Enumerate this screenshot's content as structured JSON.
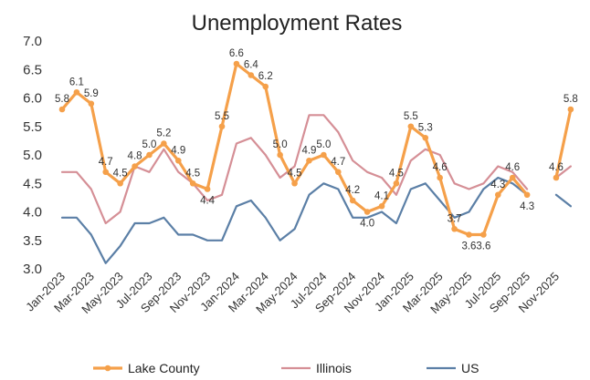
{
  "chart_data": {
    "type": "line",
    "title": "Unemployment Rates",
    "xlabel": "",
    "ylabel": "",
    "ylim": [
      3.0,
      7.0
    ],
    "y_ticks": [
      "3.0",
      "3.5",
      "4.0",
      "4.5",
      "5.0",
      "5.5",
      "6.0",
      "6.5",
      "7.0"
    ],
    "grid": false,
    "legend_position": "bottom",
    "x": [
      "Jan-2023",
      "Feb-2023",
      "Mar-2023",
      "Apr-2023",
      "May-2023",
      "Jun-2023",
      "Jul-2023",
      "Aug-2023",
      "Sep-2023",
      "Oct-2023",
      "Nov-2023",
      "Dec-2023",
      "Jan-2024",
      "Feb-2024",
      "Mar-2024",
      "Apr-2024",
      "May-2024",
      "Jun-2024",
      "Jul-2024",
      "Aug-2024",
      "Sep-2024",
      "Oct-2024",
      "Nov-2024",
      "Dec-2024",
      "Jan-2025",
      "Feb-2025",
      "Mar-2025",
      "Apr-2025",
      "May-2025",
      "Jun-2025",
      "Jul-2025",
      "Aug-2025",
      "Sep-2025",
      "Oct-2025",
      "Nov-2025",
      "Dec-2025"
    ],
    "x_tick_labels": [
      "Jan-2023",
      "Mar-2023",
      "May-2023",
      "Jul-2023",
      "Sep-2023",
      "Nov-2023",
      "Jan-2024",
      "Mar-2024",
      "May-2024",
      "Jul-2024",
      "Sep-2024",
      "Nov-2024",
      "Jan-2025",
      "Mar-2025",
      "May-2025",
      "Jul-2025",
      "Sep-2025",
      "Nov-2025"
    ],
    "series": [
      {
        "name": "Lake County",
        "color": "#F5A04A",
        "values": [
          5.8,
          6.1,
          5.9,
          4.7,
          4.5,
          4.8,
          5.0,
          5.2,
          4.9,
          4.5,
          4.4,
          5.5,
          6.6,
          6.4,
          6.2,
          5.0,
          4.5,
          4.9,
          5.0,
          4.7,
          4.2,
          4.0,
          4.1,
          4.5,
          5.5,
          5.3,
          4.6,
          3.7,
          3.6,
          3.6,
          4.3,
          4.6,
          4.3,
          null,
          4.6,
          5.8
        ],
        "data_labels": [
          "5.8",
          "6.1",
          "5.9",
          "4.7",
          "4.5",
          "4.8",
          "5.0",
          "5.2",
          "4.9",
          "4.5",
          "4.4",
          "5.5",
          "6.6",
          "6.4",
          "6.2",
          "5.0",
          "4.5",
          "4.9",
          "5.0",
          "4.7",
          "4.2",
          "4.0",
          "4.1",
          "4.5",
          "5.5",
          "5.3",
          "4.6",
          "3.7",
          "3.6",
          "3.6",
          "4.3",
          "4.6",
          "4.3",
          "",
          "4.6",
          "5.8"
        ]
      },
      {
        "name": "Illinois",
        "color": "#D58F96",
        "values": [
          4.7,
          4.7,
          4.4,
          3.8,
          4.0,
          4.8,
          4.7,
          5.1,
          4.7,
          4.5,
          4.2,
          4.3,
          5.2,
          5.3,
          5.0,
          4.6,
          4.8,
          5.7,
          5.7,
          5.4,
          4.9,
          4.7,
          4.6,
          4.3,
          4.9,
          5.1,
          5.0,
          4.5,
          4.4,
          4.5,
          4.8,
          4.7,
          4.4,
          null,
          4.6,
          4.8
        ]
      },
      {
        "name": "US",
        "color": "#5B7FA6",
        "values": [
          3.9,
          3.9,
          3.6,
          3.1,
          3.4,
          3.8,
          3.8,
          3.9,
          3.6,
          3.6,
          3.5,
          3.5,
          4.1,
          4.2,
          3.9,
          3.5,
          3.7,
          4.3,
          4.5,
          4.4,
          3.9,
          3.9,
          4.0,
          3.8,
          4.4,
          4.5,
          4.2,
          3.9,
          4.0,
          4.4,
          4.6,
          4.5,
          4.3,
          null,
          4.3,
          4.1
        ]
      }
    ]
  }
}
